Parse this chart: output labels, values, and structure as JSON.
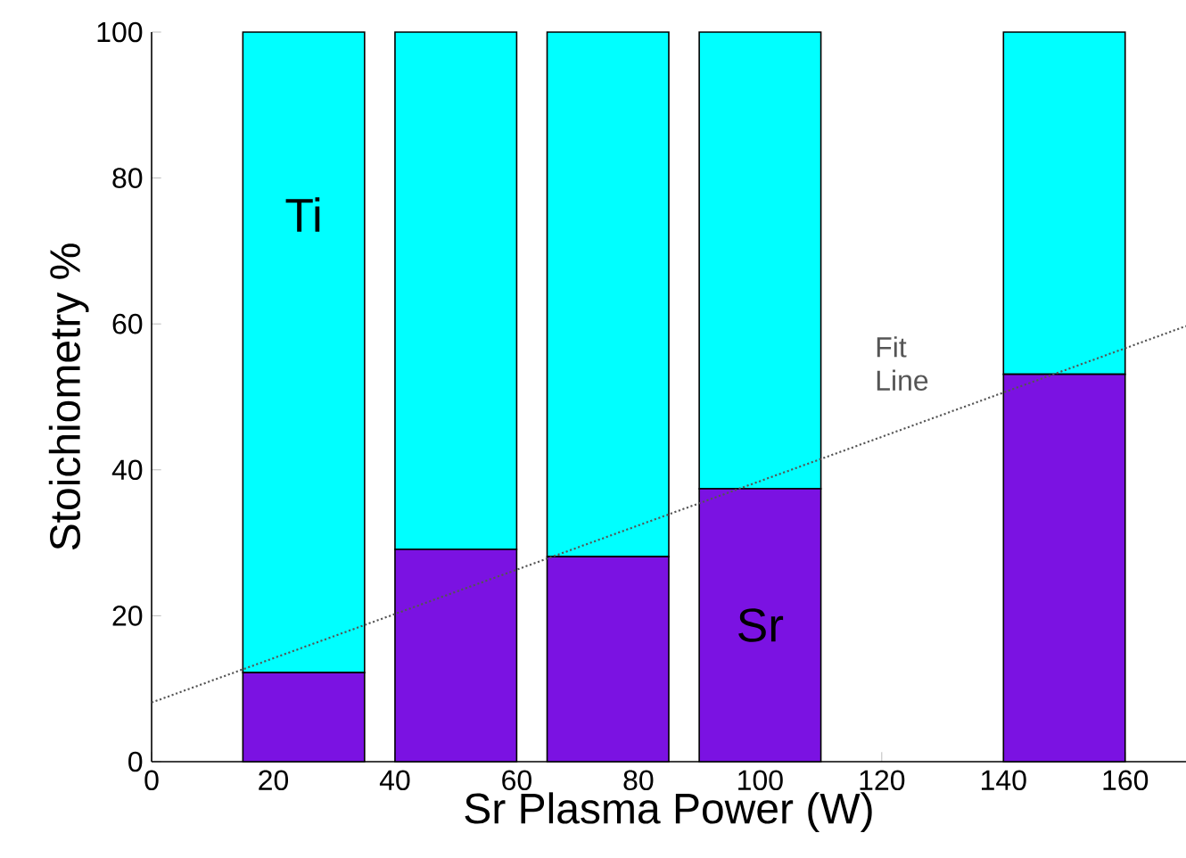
{
  "chart_data": {
    "type": "bar",
    "stacked": true,
    "xlabel": "Sr Plasma Power (W)",
    "ylabel": "Stoichiometry %",
    "x": [
      25,
      50,
      75,
      100,
      150
    ],
    "series": [
      {
        "name": "Sr",
        "color": "#7b12e2",
        "values": [
          12.2,
          29.1,
          28.1,
          37.4,
          53.1
        ]
      },
      {
        "name": "Ti",
        "color": "#00ffff",
        "values": [
          87.8,
          70.9,
          71.9,
          62.6,
          46.9
        ]
      },
      {
        "name": "Fit Line",
        "type": "line",
        "color": "#555555",
        "line_style": "dotted",
        "x": [
          0,
          170
        ],
        "values": [
          8.1,
          59.7
        ]
      }
    ],
    "xlim": [
      0,
      170
    ],
    "ylim": [
      0,
      100
    ],
    "xticks": [
      0,
      20,
      40,
      60,
      80,
      100,
      120,
      140,
      160
    ],
    "yticks": [
      0,
      20,
      40,
      60,
      80,
      100
    ],
    "grid": false
  }
}
